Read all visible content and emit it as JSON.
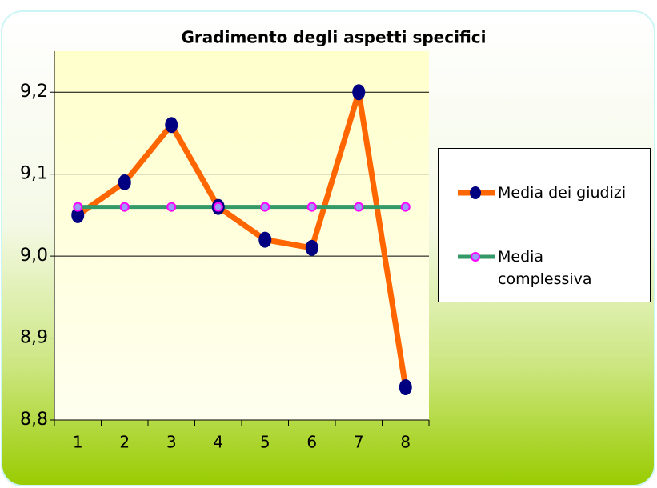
{
  "chart_data": {
    "type": "line",
    "title": "Gradimento degli aspetti specifici",
    "categories": [
      "1",
      "2",
      "3",
      "4",
      "5",
      "6",
      "7",
      "8"
    ],
    "series": [
      {
        "name": "Media dei giudizi",
        "color": "#ff6600",
        "marker_color": "#000080",
        "values": [
          9.05,
          9.09,
          9.16,
          9.06,
          9.02,
          9.01,
          9.2,
          8.84
        ]
      },
      {
        "name": "Media complessiva",
        "color": "#339966",
        "marker_color": "#ff00ff",
        "values": [
          9.06,
          9.06,
          9.06,
          9.06,
          9.06,
          9.06,
          9.06,
          9.06
        ]
      }
    ],
    "ylim": [
      8.8,
      9.25
    ],
    "yticks": [
      {
        "value": 8.8,
        "label": "8,8"
      },
      {
        "value": 8.9,
        "label": "8,9"
      },
      {
        "value": 9.0,
        "label": "9,0"
      },
      {
        "value": 9.1,
        "label": "9,1"
      },
      {
        "value": 9.2,
        "label": "9,2"
      }
    ],
    "grid": true,
    "legend": "right"
  }
}
